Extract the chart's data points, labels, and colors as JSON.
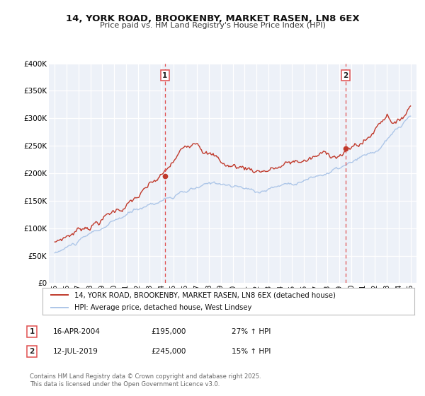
{
  "title": "14, YORK ROAD, BROOKENBY, MARKET RASEN, LN8 6EX",
  "subtitle": "Price paid vs. HM Land Registry's House Price Index (HPI)",
  "hpi_color": "#adc6e8",
  "price_color": "#c0392b",
  "vline_color": "#e05050",
  "bg_color": "#ffffff",
  "plot_bg_color": "#edf1f8",
  "grid_color": "#ffffff",
  "ylim": [
    0,
    400000
  ],
  "yticks": [
    0,
    50000,
    100000,
    150000,
    200000,
    250000,
    300000,
    350000,
    400000
  ],
  "ytick_labels": [
    "£0",
    "£50K",
    "£100K",
    "£150K",
    "£200K",
    "£250K",
    "£300K",
    "£350K",
    "£400K"
  ],
  "xlim_start": 1994.5,
  "xlim_end": 2025.5,
  "sale1_x": 2004.29,
  "sale1_y": 195000,
  "sale1_label": "1",
  "sale2_x": 2019.54,
  "sale2_y": 245000,
  "sale2_label": "2",
  "legend_entries": [
    "14, YORK ROAD, BROOKENBY, MARKET RASEN, LN8 6EX (detached house)",
    "HPI: Average price, detached house, West Lindsey"
  ],
  "table_data": [
    {
      "num": "1",
      "date": "16-APR-2004",
      "price": "£195,000",
      "hpi": "27% ↑ HPI"
    },
    {
      "num": "2",
      "date": "12-JUL-2019",
      "price": "£245,000",
      "hpi": "15% ↑ HPI"
    }
  ],
  "footer": "Contains HM Land Registry data © Crown copyright and database right 2025.\nThis data is licensed under the Open Government Licence v3.0.",
  "xticks": [
    1995,
    1996,
    1997,
    1998,
    1999,
    2000,
    2001,
    2002,
    2003,
    2004,
    2005,
    2006,
    2007,
    2008,
    2009,
    2010,
    2011,
    2012,
    2013,
    2014,
    2015,
    2016,
    2017,
    2018,
    2019,
    2020,
    2021,
    2022,
    2023,
    2024,
    2025
  ]
}
